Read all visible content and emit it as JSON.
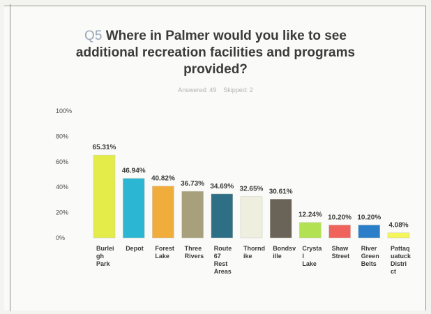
{
  "question": {
    "number": "Q5",
    "text_line1": "Where in Palmer would you like to see",
    "text_line2": "additional recreation facilities and programs",
    "text_line3": "provided?"
  },
  "meta": {
    "answered": "Answered: 49",
    "skipped": "Skipped: 2"
  },
  "chart_data": {
    "type": "bar",
    "categories": [
      [
        "Burlei",
        "gh",
        "Park"
      ],
      [
        "Depot"
      ],
      [
        "Forest",
        "Lake"
      ],
      [
        "Three",
        "Rivers"
      ],
      [
        "Route",
        "67",
        "Rest",
        "Areas"
      ],
      [
        "Thornd",
        "ike"
      ],
      [
        "Bondsv",
        "ille"
      ],
      [
        "Crysta",
        "l",
        "Lake"
      ],
      [
        "Shaw",
        "Street"
      ],
      [
        "River",
        "Green",
        "Belts"
      ],
      [
        "Pattaq",
        "uatuck",
        "Distri",
        "ct"
      ]
    ],
    "values": [
      65.31,
      46.94,
      40.82,
      36.73,
      34.69,
      32.65,
      30.61,
      12.24,
      10.2,
      10.2,
      4.08
    ],
    "value_labels": [
      "65.31%",
      "46.94%",
      "40.82%",
      "36.73%",
      "34.69%",
      "32.65%",
      "30.61%",
      "12.24%",
      "10.20%",
      "10.20%",
      "4.08%"
    ],
    "colors": [
      "#e4ec4a",
      "#2bb7d3",
      "#f0ad3c",
      "#a8a07c",
      "#2e6f86",
      "#efefe0",
      "#6a6357",
      "#b3e154",
      "#f0625c",
      "#2a7fc8",
      "#f5f55c"
    ],
    "yticks": [
      "0%",
      "20%",
      "40%",
      "60%",
      "80%",
      "100%"
    ],
    "ylim": [
      0,
      100
    ],
    "grid": false,
    "title": "Where in Palmer would you like to see additional recreation facilities and programs provided?"
  }
}
